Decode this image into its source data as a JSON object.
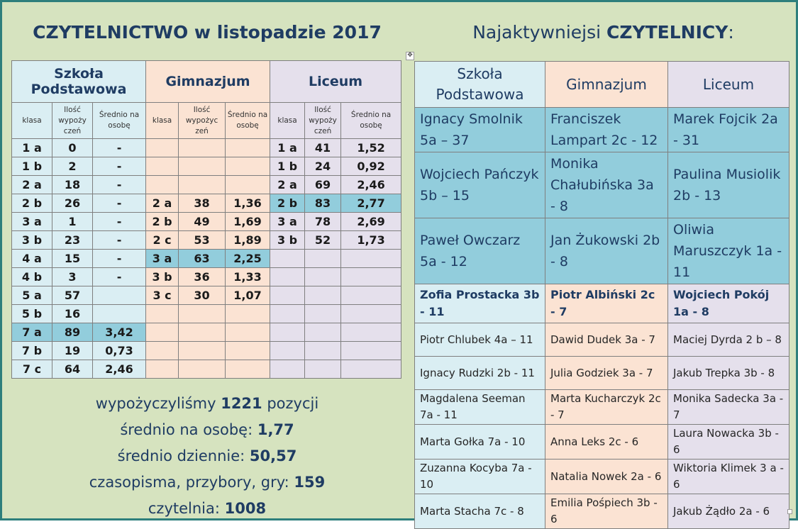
{
  "title_left": "CZYTELNICTWO w listopadzie 2017",
  "title_right": {
    "prefix": "Najaktywniejsi ",
    "bold": "CZYTELNICY",
    "suffix": ":"
  },
  "stats": {
    "groups": [
      "Szkoła Podstawowa",
      "Gimnazjum",
      "Liceum"
    ],
    "col_klasa": "klasa",
    "col_ilosc": "Ilość wypoży czeń",
    "col_ilosc_gm": "Ilość wypożyc zeń",
    "col_ilosc_li": "Ilość wypoży czeń",
    "col_srednio": "Średnio na osobę",
    "col_srednio_gm": "Średnio na osobę",
    "rows": [
      {
        "sp": [
          "1 a",
          "0",
          "-"
        ],
        "gm": [
          "",
          "",
          ""
        ],
        "li": [
          "1 a",
          "41",
          "1,52"
        ]
      },
      {
        "sp": [
          "1 b",
          "2",
          "-"
        ],
        "gm": [
          "",
          "",
          ""
        ],
        "li": [
          "1 b",
          "24",
          "0,92"
        ]
      },
      {
        "sp": [
          "2 a",
          "18",
          "-"
        ],
        "gm": [
          "",
          "",
          ""
        ],
        "li": [
          "2 a",
          "69",
          "2,46"
        ]
      },
      {
        "sp": [
          "2 b",
          "26",
          "-"
        ],
        "gm": [
          "2 a",
          "38",
          "1,36"
        ],
        "li": [
          "2 b",
          "83",
          "2,77"
        ]
      },
      {
        "sp": [
          "3 a",
          "1",
          "-"
        ],
        "gm": [
          "2 b",
          "49",
          "1,69"
        ],
        "li": [
          "3 a",
          "78",
          "2,69"
        ]
      },
      {
        "sp": [
          "3 b",
          "23",
          "-"
        ],
        "gm": [
          "2 c",
          "53",
          "1,89"
        ],
        "li": [
          "3 b",
          "52",
          "1,73"
        ]
      },
      {
        "sp": [
          "4 a",
          "15",
          "-"
        ],
        "gm": [
          "3 a",
          "63",
          "2,25"
        ],
        "li": [
          "",
          "",
          ""
        ]
      },
      {
        "sp": [
          "4 b",
          "3",
          "-"
        ],
        "gm": [
          "3 b",
          "36",
          "1,33"
        ],
        "li": [
          "",
          "",
          ""
        ]
      },
      {
        "sp": [
          "5 a",
          "57",
          ""
        ],
        "gm": [
          "3 c",
          "30",
          "1,07"
        ],
        "li": [
          "",
          "",
          ""
        ]
      },
      {
        "sp": [
          "5 b",
          "16",
          ""
        ],
        "gm": [
          "",
          "",
          ""
        ],
        "li": [
          "",
          "",
          ""
        ]
      },
      {
        "sp": [
          "7 a",
          "89",
          "3,42"
        ],
        "gm": [
          "",
          "",
          ""
        ],
        "li": [
          "",
          "",
          ""
        ]
      },
      {
        "sp": [
          "7 b",
          "19",
          "0,73"
        ],
        "gm": [
          "",
          "",
          ""
        ],
        "li": [
          "",
          "",
          ""
        ]
      },
      {
        "sp": [
          "7 c",
          "64",
          "2,46"
        ],
        "gm": [
          "",
          "",
          ""
        ],
        "li": [
          "",
          "",
          ""
        ]
      }
    ]
  },
  "summary": {
    "line1": {
      "a": "wypożyczyliśmy ",
      "b": "1221",
      "c": " pozycji"
    },
    "line2": {
      "a": "średnio na osobę: ",
      "b": "1,77"
    },
    "line3": {
      "a": "średnio dziennie: ",
      "b": "50,57"
    },
    "line4": {
      "a": "czasopisma, przybory, gry: ",
      "b": "159"
    },
    "line5": {
      "a": "czytelnia: ",
      "b": "1008"
    }
  },
  "readers": {
    "headers": [
      "Szkoła Podstawowa",
      "Gimnazjum",
      "Liceum"
    ],
    "rows": [
      [
        "Ignacy Smolnik 5a – 37",
        "Franciszek Lampart 2c - 12",
        "Marek Fojcik 2a - 31"
      ],
      [
        "Wojciech Pańczyk 5b – 15",
        "Monika Chałubińska 3a - 8",
        "Paulina Musiolik 2b - 13"
      ],
      [
        "Paweł Owczarz 5a - 12",
        "Jan Żukowski 2b - 8",
        "Oliwia Maruszczyk 1a - 11"
      ],
      [
        "Zofia Prostacka 3b - 11",
        "Piotr Albiński 2c - 7",
        "Wojciech Pokój 1a - 8"
      ],
      [
        "Piotr Chlubek 4a – 11",
        "Dawid Dudek 3a - 7",
        "Maciej Dyrda 2 b – 8"
      ],
      [
        "Ignacy Rudzki 2b - 11",
        "Julia Godziek 3a - 7",
        "Jakub Trepka 3b - 8"
      ],
      [
        "Magdalena Seeman 7a - 11",
        "Marta Kucharczyk 2c - 7",
        "Monika Sadecka 3a - 7"
      ],
      [
        "Marta Gołka 7a - 10",
        "Anna Leks 2c - 6",
        "Laura Nowacka 3b - 6"
      ],
      [
        "Zuzanna Kocyba 7a - 10",
        "Natalia Nowek 2a - 6",
        "Wiktoria Klimek 3 a - 6"
      ],
      [
        "Marta Stacha 7c - 8",
        "Emilia Pośpiech 3b - 6",
        "Jakub Żądło 2a - 6"
      ]
    ]
  },
  "colors": {
    "sp": "#daeef3",
    "gm": "#fbe3d3",
    "li": "#e5e0ec",
    "highlight": "#92cddc",
    "background": "#d6e3bf",
    "border": "#2e7f7c",
    "text": "#1f3c63"
  }
}
